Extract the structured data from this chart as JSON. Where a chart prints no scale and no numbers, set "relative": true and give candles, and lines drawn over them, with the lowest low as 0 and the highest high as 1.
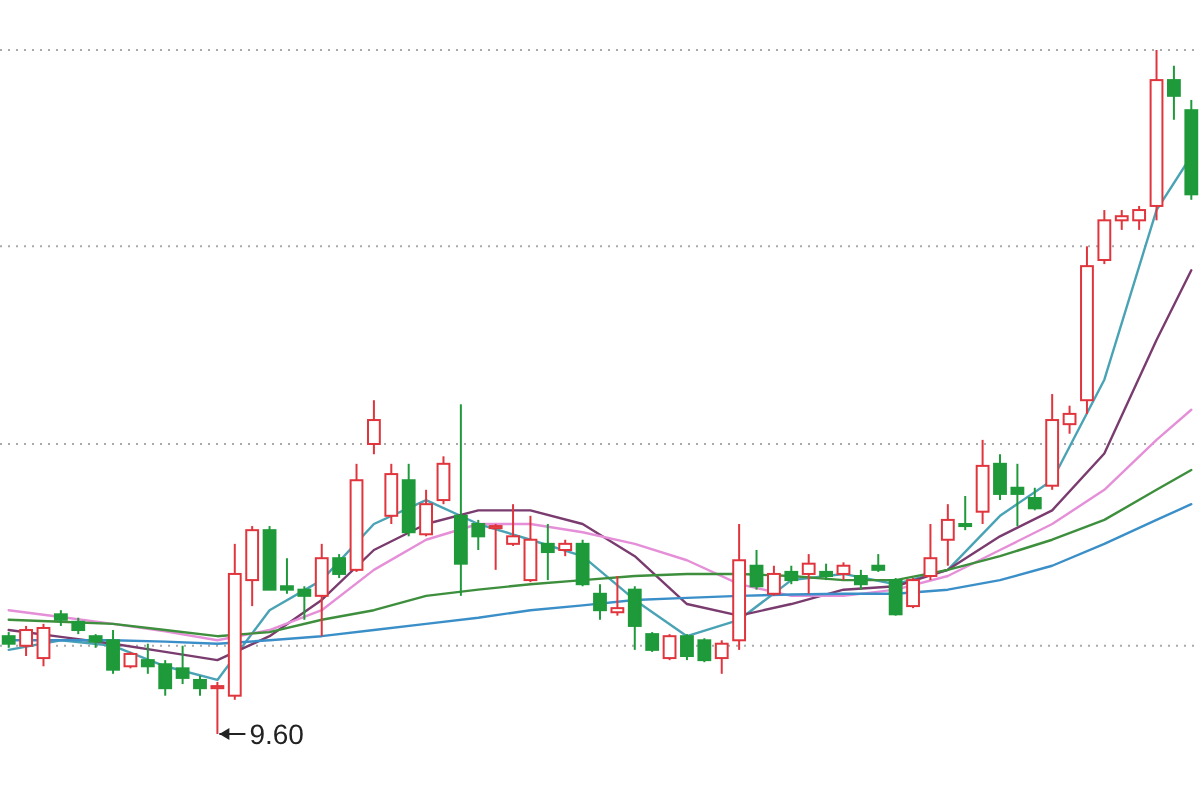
{
  "chart_data": {
    "type": "candlestick",
    "relative": true,
    "annotations": [
      "9.60"
    ],
    "categories": [
      null,
      null,
      null,
      null,
      null,
      null,
      null,
      null,
      null,
      null,
      null,
      null,
      null,
      null,
      null,
      null,
      null,
      null,
      null,
      null,
      null,
      null,
      null,
      null,
      null,
      null,
      null,
      null,
      null,
      null,
      null,
      null,
      null,
      null,
      null,
      null,
      null,
      null,
      null,
      null,
      null,
      null,
      null,
      null,
      null,
      null,
      null,
      null,
      null,
      null,
      null,
      null,
      null,
      null,
      null,
      null,
      null,
      null,
      null,
      null,
      null,
      null,
      null,
      null,
      null,
      null,
      null,
      null,
      null
    ],
    "ohlc": [
      [
        0.143,
        0.149,
        0.126,
        0.132
      ],
      [
        0.129,
        0.158,
        0.114,
        0.152
      ],
      [
        0.111,
        0.161,
        0.099,
        0.155
      ],
      [
        0.175,
        0.181,
        0.158,
        0.167
      ],
      [
        0.164,
        0.17,
        0.146,
        0.152
      ],
      [
        0.143,
        0.146,
        0.126,
        0.135
      ],
      [
        0.137,
        0.152,
        0.088,
        0.094
      ],
      [
        0.099,
        0.12,
        0.096,
        0.117
      ],
      [
        0.108,
        0.132,
        0.088,
        0.099
      ],
      [
        0.102,
        0.108,
        0.056,
        0.067
      ],
      [
        0.096,
        0.129,
        0.073,
        0.082
      ],
      [
        0.079,
        0.085,
        0.056,
        0.067
      ],
      [
        0.067,
        0.076,
        0,
        0.07
      ],
      [
        0.056,
        0.278,
        0.05,
        0.234
      ],
      [
        0.225,
        0.304,
        0.187,
        0.298
      ],
      [
        0.298,
        0.304,
        0.211,
        0.211
      ],
      [
        0.216,
        0.257,
        0.205,
        0.211
      ],
      [
        0.211,
        0.216,
        0.167,
        0.202
      ],
      [
        0.202,
        0.278,
        0.143,
        0.257
      ],
      [
        0.257,
        0.263,
        0.228,
        0.234
      ],
      [
        0.24,
        0.395,
        0.237,
        0.371
      ],
      [
        0.424,
        0.488,
        0.409,
        0.459
      ],
      [
        0.319,
        0.395,
        0.307,
        0.38
      ],
      [
        0.371,
        0.395,
        0.289,
        0.295
      ],
      [
        0.292,
        0.357,
        0.289,
        0.336
      ],
      [
        0.342,
        0.406,
        0.336,
        0.395
      ],
      [
        0.319,
        0.482,
        0.202,
        0.249
      ],
      [
        0.307,
        0.313,
        0.269,
        0.289
      ],
      [
        0.301,
        0.307,
        0.24,
        0.304
      ],
      [
        0.278,
        0.336,
        0.275,
        0.289
      ],
      [
        0.225,
        0.319,
        0.222,
        0.284
      ],
      [
        0.278,
        0.307,
        0.225,
        0.266
      ],
      [
        0.269,
        0.284,
        0.26,
        0.278
      ],
      [
        0.278,
        0.284,
        0.216,
        0.219
      ],
      [
        0.205,
        0.219,
        0.167,
        0.181
      ],
      [
        0.178,
        0.231,
        0.173,
        0.184
      ],
      [
        0.211,
        0.216,
        0.123,
        0.158
      ],
      [
        0.146,
        0.149,
        0.12,
        0.123
      ],
      [
        0.111,
        0.146,
        0.108,
        0.143
      ],
      [
        0.143,
        0.146,
        0.108,
        0.114
      ],
      [
        0.137,
        0.14,
        0.105,
        0.108
      ],
      [
        0.111,
        0.137,
        0.088,
        0.132
      ],
      [
        0.137,
        0.307,
        0.123,
        0.254
      ],
      [
        0.246,
        0.269,
        0.211,
        0.216
      ],
      [
        0.205,
        0.246,
        0.202,
        0.234
      ],
      [
        0.237,
        0.246,
        0.219,
        0.225
      ],
      [
        0.234,
        0.263,
        0.205,
        0.249
      ],
      [
        0.237,
        0.249,
        0.225,
        0.231
      ],
      [
        0.234,
        0.251,
        0.225,
        0.246
      ],
      [
        0.231,
        0.24,
        0.211,
        0.219
      ],
      [
        0.246,
        0.263,
        0.237,
        0.24
      ],
      [
        0.225,
        0.228,
        0.173,
        0.175
      ],
      [
        0.187,
        0.228,
        0.184,
        0.225
      ],
      [
        0.231,
        0.307,
        0.225,
        0.257
      ],
      [
        0.284,
        0.336,
        0.246,
        0.313
      ],
      [
        0.307,
        0.348,
        0.298,
        0.304
      ],
      [
        0.325,
        0.43,
        0.307,
        0.392
      ],
      [
        0.395,
        0.409,
        0.342,
        0.351
      ],
      [
        0.36,
        0.395,
        0.304,
        0.351
      ],
      [
        0.345,
        0.36,
        0.327,
        0.33
      ],
      [
        0.363,
        0.497,
        0.357,
        0.459
      ],
      [
        0.453,
        0.48,
        0.439,
        0.468
      ],
      [
        0.488,
        0.713,
        0.468,
        0.684
      ],
      [
        0.693,
        0.766,
        0.687,
        0.751
      ],
      [
        0.751,
        0.766,
        0.737,
        0.757
      ],
      [
        0.751,
        0.772,
        0.737,
        0.766
      ],
      [
        0.772,
        1,
        0.751,
        0.956
      ],
      [
        0.956,
        0.977,
        0.898,
        0.933
      ],
      [
        0.912,
        0.927,
        0.781,
        0.789
      ]
    ],
    "colors": [
      "#1f9a3a",
      "#e0353d",
      "#e0353d",
      "#1f9a3a",
      "#1f9a3a",
      "#1f9a3a",
      "#1f9a3a",
      "#e0353d",
      "#1f9a3a",
      "#1f9a3a",
      "#1f9a3a",
      "#1f9a3a",
      "#e0353d",
      "#e0353d",
      "#e0353d",
      "#1f9a3a",
      "#1f9a3a",
      "#1f9a3a",
      "#e0353d",
      "#1f9a3a",
      "#e0353d",
      "#e0353d",
      "#e0353d",
      "#1f9a3a",
      "#e0353d",
      "#e0353d",
      "#1f9a3a",
      "#1f9a3a",
      "#e0353d",
      "#e0353d",
      "#e0353d",
      "#1f9a3a",
      "#e0353d",
      "#1f9a3a",
      "#1f9a3a",
      "#e0353d",
      "#1f9a3a",
      "#1f9a3a",
      "#e0353d",
      "#1f9a3a",
      "#1f9a3a",
      "#e0353d",
      "#e0353d",
      "#1f9a3a",
      "#e0353d",
      "#1f9a3a",
      "#e0353d",
      "#1f9a3a",
      "#e0353d",
      "#1f9a3a",
      "#1f9a3a",
      "#1f9a3a",
      "#e0353d",
      "#e0353d",
      "#e0353d",
      "#1f9a3a",
      "#e0353d",
      "#1f9a3a",
      "#1f9a3a",
      "#1f9a3a",
      "#e0353d",
      "#e0353d",
      "#e0353d",
      "#e0353d",
      "#e0353d",
      "#e0353d",
      "#e0353d",
      "#1f9a3a",
      "#1f9a3a"
    ],
    "series": [
      {
        "type": "line",
        "color": "#4aa3b5",
        "values": [
          0.123,
          null,
          null,
          0.137,
          null,
          null,
          0.129,
          null,
          null,
          0.099,
          null,
          null,
          0.079,
          null,
          null,
          0.181,
          null,
          null,
          0.225,
          null,
          null,
          0.307,
          null,
          null,
          0.342,
          null,
          null,
          0.307,
          null,
          null,
          0.284,
          null,
          null,
          0.26,
          null,
          null,
          0.196,
          null,
          null,
          0.143,
          null,
          null,
          0.167,
          null,
          null,
          0.225,
          null,
          null,
          0.234,
          null,
          null,
          0.219,
          null,
          null,
          0.24,
          null,
          null,
          0.319,
          null,
          null,
          0.371,
          null,
          null,
          0.518,
          null,
          null,
          0.766,
          null,
          0.845
        ]
      },
      {
        "type": "line",
        "color": "#7a3b6e",
        "values": [
          0.152,
          null,
          null,
          0.142,
          null,
          null,
          0.132,
          null,
          null,
          0.12,
          null,
          null,
          0.108,
          null,
          null,
          0.143,
          null,
          null,
          0.196,
          null,
          null,
          0.269,
          null,
          null,
          0.307,
          null,
          null,
          0.327,
          null,
          null,
          0.327,
          null,
          null,
          0.307,
          null,
          null,
          0.26,
          null,
          null,
          0.19,
          null,
          null,
          0.173,
          null,
          null,
          0.19,
          null,
          null,
          0.211,
          null,
          null,
          0.216,
          null,
          null,
          0.24,
          null,
          null,
          0.289,
          null,
          null,
          0.327,
          null,
          null,
          0.41,
          null,
          null,
          0.576,
          null,
          0.678
        ]
      },
      {
        "type": "line",
        "color": "#e58fd8",
        "values": [
          0.181,
          null,
          null,
          0.171,
          null,
          null,
          0.161,
          null,
          null,
          0.15,
          null,
          null,
          0.137,
          null,
          null,
          0.152,
          null,
          null,
          0.181,
          null,
          null,
          0.24,
          null,
          null,
          0.284,
          null,
          null,
          0.307,
          null,
          null,
          0.307,
          null,
          null,
          0.295,
          null,
          null,
          0.278,
          null,
          null,
          0.254,
          null,
          null,
          0.219,
          null,
          null,
          0.202,
          null,
          null,
          0.202,
          null,
          null,
          0.211,
          null,
          null,
          0.231,
          null,
          null,
          0.269,
          null,
          null,
          0.307,
          null,
          null,
          0.357,
          null,
          null,
          0.43,
          null,
          0.474
        ]
      },
      {
        "type": "line",
        "color": "#3d8f3d",
        "values": [
          0.167,
          null,
          null,
          0.164,
          null,
          null,
          0.161,
          null,
          null,
          0.152,
          null,
          null,
          0.143,
          null,
          null,
          0.149,
          null,
          null,
          0.167,
          null,
          null,
          0.181,
          null,
          null,
          0.202,
          null,
          null,
          0.211,
          null,
          null,
          0.219,
          null,
          null,
          0.225,
          null,
          null,
          0.231,
          null,
          null,
          0.234,
          null,
          null,
          0.234,
          null,
          null,
          0.231,
          null,
          null,
          0.225,
          null,
          null,
          0.225,
          null,
          null,
          0.24,
          null,
          null,
          0.26,
          null,
          null,
          0.284,
          null,
          null,
          0.313,
          null,
          null,
          0.357,
          null,
          0.386
        ]
      },
      {
        "type": "line",
        "color": "#3b8fc8",
        "values": [
          0.137,
          null,
          null,
          0.137,
          null,
          null,
          0.137,
          null,
          null,
          0.135,
          null,
          null,
          0.132,
          null,
          null,
          0.137,
          null,
          null,
          0.143,
          null,
          null,
          0.152,
          null,
          null,
          0.161,
          null,
          null,
          0.17,
          null,
          null,
          0.181,
          null,
          null,
          0.188,
          null,
          null,
          0.196,
          null,
          null,
          0.199,
          null,
          null,
          0.202,
          null,
          null,
          0.204,
          null,
          null,
          0.205,
          null,
          null,
          0.205,
          null,
          null,
          0.211,
          null,
          null,
          0.225,
          null,
          null,
          0.246,
          null,
          null,
          0.278,
          null,
          null,
          0.313,
          null,
          0.336
        ]
      }
    ],
    "ref_lines": [
      {
        "axis": "y",
        "value": 1,
        "color": "#aaaaaa",
        "line_style": "dotted"
      },
      {
        "axis": "y",
        "value": 0.713,
        "color": "#aaaaaa",
        "line_style": "dotted"
      },
      {
        "axis": "y",
        "value": 0.424,
        "color": "#aaaaaa",
        "line_style": "dotted"
      },
      {
        "axis": "y",
        "value": 0.129,
        "color": "#aaaaaa",
        "line_style": "dotted"
      }
    ]
  }
}
